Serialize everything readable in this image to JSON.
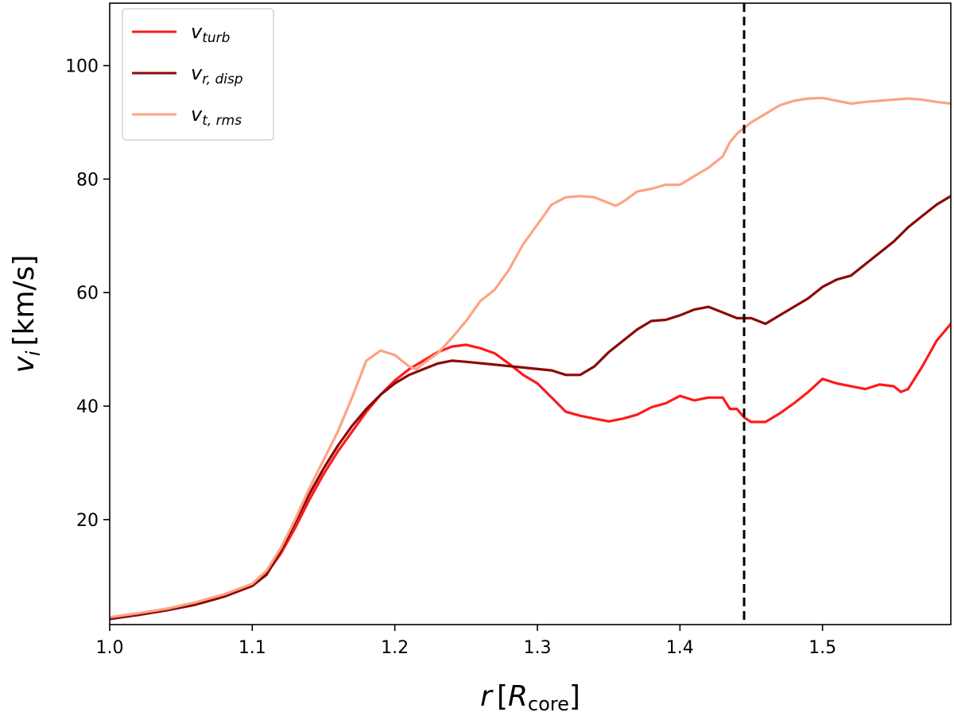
{
  "chart_data": {
    "type": "line",
    "xlabel": {
      "main": "r",
      "bracket_open": "[",
      "sym": "R",
      "sub": "core",
      "bracket_close": "]"
    },
    "ylabel": {
      "main": "v",
      "sub": "i",
      "unit": "[km/s]"
    },
    "xlim": [
      1.0,
      1.59
    ],
    "ylim": [
      1.5,
      111
    ],
    "xticks": [
      1.0,
      1.1,
      1.2,
      1.3,
      1.4,
      1.5
    ],
    "xtick_labels": [
      "1.0",
      "1.1",
      "1.2",
      "1.3",
      "1.4",
      "1.5"
    ],
    "yticks": [
      20,
      40,
      60,
      80,
      100
    ],
    "ytick_labels": [
      "20",
      "40",
      "60",
      "80",
      "100"
    ],
    "legend_position": "top-left",
    "vline": {
      "x": 1.445,
      "style": "dashed",
      "color": "#000000"
    },
    "series": [
      {
        "name_main": "v",
        "name_sub": "turb",
        "color": "#ff1a1a",
        "points": [
          [
            1.0,
            2.5
          ],
          [
            1.02,
            3.3
          ],
          [
            1.04,
            4.1
          ],
          [
            1.06,
            5.1
          ],
          [
            1.08,
            6.5
          ],
          [
            1.1,
            8.5
          ],
          [
            1.11,
            10.5
          ],
          [
            1.12,
            14
          ],
          [
            1.13,
            18.5
          ],
          [
            1.14,
            23.5
          ],
          [
            1.15,
            28
          ],
          [
            1.16,
            32
          ],
          [
            1.17,
            35.5
          ],
          [
            1.18,
            39
          ],
          [
            1.19,
            42
          ],
          [
            1.2,
            44.5
          ],
          [
            1.21,
            46.5
          ],
          [
            1.22,
            48
          ],
          [
            1.23,
            49.5
          ],
          [
            1.24,
            50.5
          ],
          [
            1.25,
            50.8
          ],
          [
            1.26,
            50.2
          ],
          [
            1.27,
            49.3
          ],
          [
            1.28,
            47.5
          ],
          [
            1.29,
            45.5
          ],
          [
            1.3,
            44
          ],
          [
            1.31,
            41.5
          ],
          [
            1.32,
            39
          ],
          [
            1.33,
            38.3
          ],
          [
            1.34,
            37.8
          ],
          [
            1.35,
            37.3
          ],
          [
            1.36,
            37.8
          ],
          [
            1.37,
            38.5
          ],
          [
            1.38,
            39.8
          ],
          [
            1.39,
            40.5
          ],
          [
            1.4,
            41.8
          ],
          [
            1.41,
            41
          ],
          [
            1.42,
            41.5
          ],
          [
            1.43,
            41.5
          ],
          [
            1.435,
            39.5
          ],
          [
            1.44,
            39.5
          ],
          [
            1.445,
            38
          ],
          [
            1.45,
            37.2
          ],
          [
            1.46,
            37.2
          ],
          [
            1.47,
            38.7
          ],
          [
            1.48,
            40.5
          ],
          [
            1.49,
            42.5
          ],
          [
            1.5,
            44.8
          ],
          [
            1.51,
            44
          ],
          [
            1.52,
            43.5
          ],
          [
            1.53,
            43
          ],
          [
            1.54,
            43.8
          ],
          [
            1.55,
            43.5
          ],
          [
            1.555,
            42.5
          ],
          [
            1.56,
            43
          ],
          [
            1.57,
            47
          ],
          [
            1.58,
            51.5
          ],
          [
            1.59,
            54.5
          ]
        ]
      },
      {
        "name_main": "v",
        "name_sub": "r, disp",
        "color": "#8b0a0a",
        "points": [
          [
            1.0,
            2.5
          ],
          [
            1.02,
            3.2
          ],
          [
            1.04,
            4
          ],
          [
            1.06,
            5
          ],
          [
            1.08,
            6.4
          ],
          [
            1.1,
            8.3
          ],
          [
            1.11,
            10.3
          ],
          [
            1.12,
            14.5
          ],
          [
            1.13,
            19.5
          ],
          [
            1.14,
            24.5
          ],
          [
            1.15,
            29
          ],
          [
            1.16,
            33
          ],
          [
            1.17,
            36.5
          ],
          [
            1.18,
            39.5
          ],
          [
            1.19,
            42
          ],
          [
            1.2,
            44
          ],
          [
            1.21,
            45.5
          ],
          [
            1.22,
            46.5
          ],
          [
            1.23,
            47.5
          ],
          [
            1.24,
            48
          ],
          [
            1.25,
            47.8
          ],
          [
            1.27,
            47.3
          ],
          [
            1.29,
            46.8
          ],
          [
            1.31,
            46.3
          ],
          [
            1.32,
            45.5
          ],
          [
            1.33,
            45.5
          ],
          [
            1.34,
            47
          ],
          [
            1.35,
            49.5
          ],
          [
            1.36,
            51.5
          ],
          [
            1.37,
            53.5
          ],
          [
            1.38,
            55
          ],
          [
            1.39,
            55.2
          ],
          [
            1.4,
            56
          ],
          [
            1.41,
            57
          ],
          [
            1.42,
            57.5
          ],
          [
            1.43,
            56.5
          ],
          [
            1.44,
            55.5
          ],
          [
            1.45,
            55.5
          ],
          [
            1.46,
            54.5
          ],
          [
            1.47,
            56
          ],
          [
            1.48,
            57.5
          ],
          [
            1.49,
            59
          ],
          [
            1.5,
            61
          ],
          [
            1.51,
            62.3
          ],
          [
            1.52,
            63
          ],
          [
            1.53,
            65
          ],
          [
            1.54,
            67
          ],
          [
            1.55,
            69
          ],
          [
            1.56,
            71.5
          ],
          [
            1.57,
            73.5
          ],
          [
            1.58,
            75.5
          ],
          [
            1.59,
            77
          ]
        ]
      },
      {
        "name_main": "v",
        "name_sub": "t, rms",
        "color": "#fca482",
        "points": [
          [
            1.0,
            2.8
          ],
          [
            1.02,
            3.5
          ],
          [
            1.04,
            4.3
          ],
          [
            1.06,
            5.4
          ],
          [
            1.08,
            6.8
          ],
          [
            1.1,
            8.7
          ],
          [
            1.11,
            11
          ],
          [
            1.12,
            15
          ],
          [
            1.13,
            20
          ],
          [
            1.14,
            25.5
          ],
          [
            1.15,
            30.5
          ],
          [
            1.16,
            35.5
          ],
          [
            1.17,
            41.5
          ],
          [
            1.18,
            48
          ],
          [
            1.19,
            49.8
          ],
          [
            1.2,
            49
          ],
          [
            1.21,
            47
          ],
          [
            1.215,
            46.5
          ],
          [
            1.22,
            47.5
          ],
          [
            1.23,
            49.3
          ],
          [
            1.24,
            52
          ],
          [
            1.25,
            55
          ],
          [
            1.26,
            58.5
          ],
          [
            1.27,
            60.5
          ],
          [
            1.28,
            64
          ],
          [
            1.29,
            68.5
          ],
          [
            1.3,
            72
          ],
          [
            1.31,
            75.5
          ],
          [
            1.32,
            76.8
          ],
          [
            1.33,
            77
          ],
          [
            1.34,
            76.8
          ],
          [
            1.35,
            75.8
          ],
          [
            1.355,
            75.3
          ],
          [
            1.36,
            76
          ],
          [
            1.37,
            77.8
          ],
          [
            1.38,
            78.3
          ],
          [
            1.39,
            79
          ],
          [
            1.4,
            79
          ],
          [
            1.41,
            80.5
          ],
          [
            1.42,
            82
          ],
          [
            1.43,
            84
          ],
          [
            1.435,
            86.5
          ],
          [
            1.44,
            88
          ],
          [
            1.445,
            89
          ],
          [
            1.45,
            90
          ],
          [
            1.46,
            91.5
          ],
          [
            1.47,
            93
          ],
          [
            1.48,
            93.8
          ],
          [
            1.49,
            94.2
          ],
          [
            1.5,
            94.3
          ],
          [
            1.51,
            93.8
          ],
          [
            1.52,
            93.3
          ],
          [
            1.53,
            93.6
          ],
          [
            1.54,
            93.8
          ],
          [
            1.55,
            94
          ],
          [
            1.56,
            94.2
          ],
          [
            1.57,
            94
          ],
          [
            1.58,
            93.6
          ],
          [
            1.59,
            93.3
          ]
        ]
      }
    ]
  }
}
